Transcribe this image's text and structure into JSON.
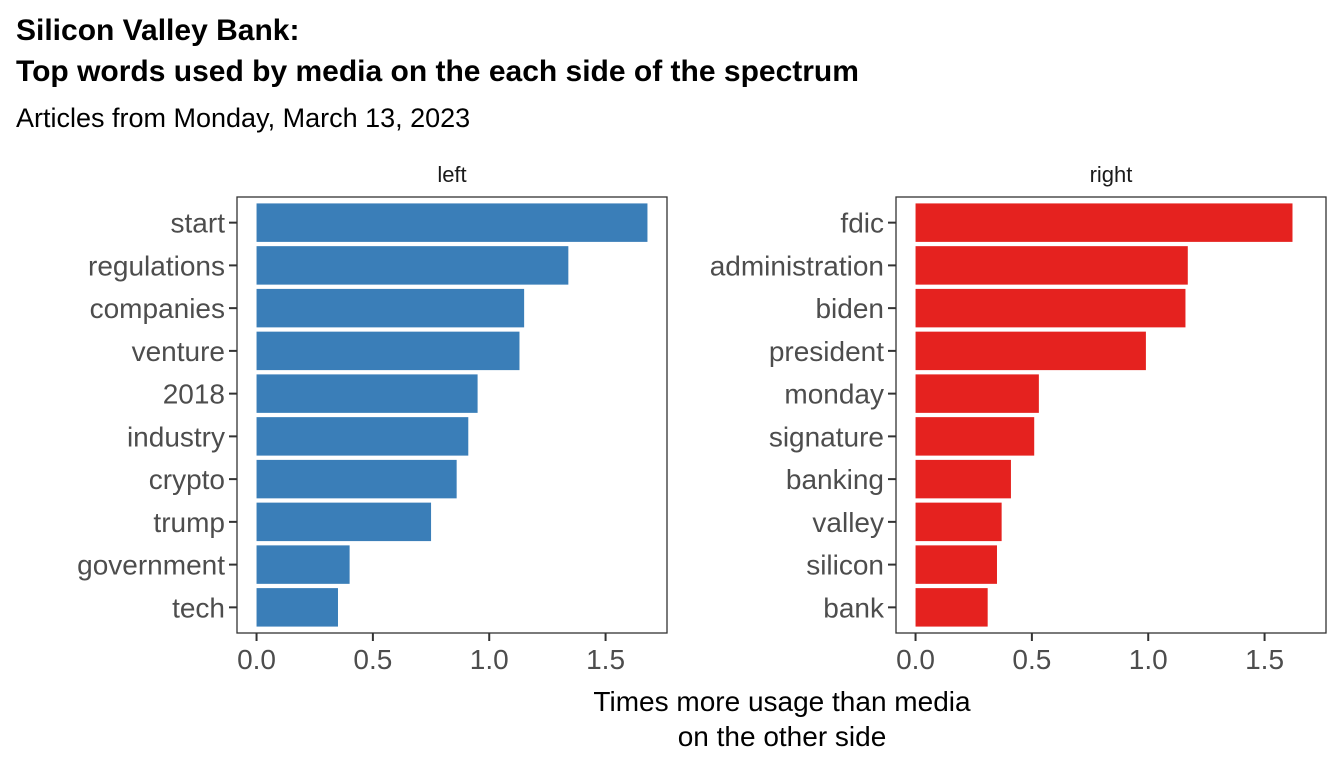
{
  "chart_data": {
    "type": "bar",
    "orientation": "horizontal",
    "title_line1": "Silicon Valley Bank:",
    "title_line2": "Top words used by media on the each side of the spectrum",
    "subtitle": "Articles from Monday, March 13, 2023",
    "xlabel_line1": "Times more usage than media",
    "xlabel_line2": "on the other side",
    "xlim": [
      -0.084,
      1.764
    ],
    "x_ticks": [
      "0.0",
      "0.5",
      "1.0",
      "1.5"
    ],
    "x_tick_values": [
      0,
      0.5,
      1.0,
      1.5
    ],
    "grid": false,
    "legend": "none",
    "panels": [
      {
        "facet_label": "left",
        "color": "#3A7EB8",
        "categories": [
          "start",
          "regulations",
          "companies",
          "venture",
          "2018",
          "industry",
          "crypto",
          "trump",
          "government",
          "tech"
        ],
        "values": [
          1.68,
          1.34,
          1.15,
          1.13,
          0.95,
          0.91,
          0.86,
          0.75,
          0.4,
          0.35
        ]
      },
      {
        "facet_label": "right",
        "color": "#E5221F",
        "categories": [
          "fdic",
          "administration",
          "biden",
          "president",
          "monday",
          "signature",
          "banking",
          "valley",
          "silicon",
          "bank"
        ],
        "values": [
          1.62,
          1.17,
          1.16,
          0.99,
          0.53,
          0.51,
          0.41,
          0.37,
          0.35,
          0.31
        ]
      }
    ]
  }
}
